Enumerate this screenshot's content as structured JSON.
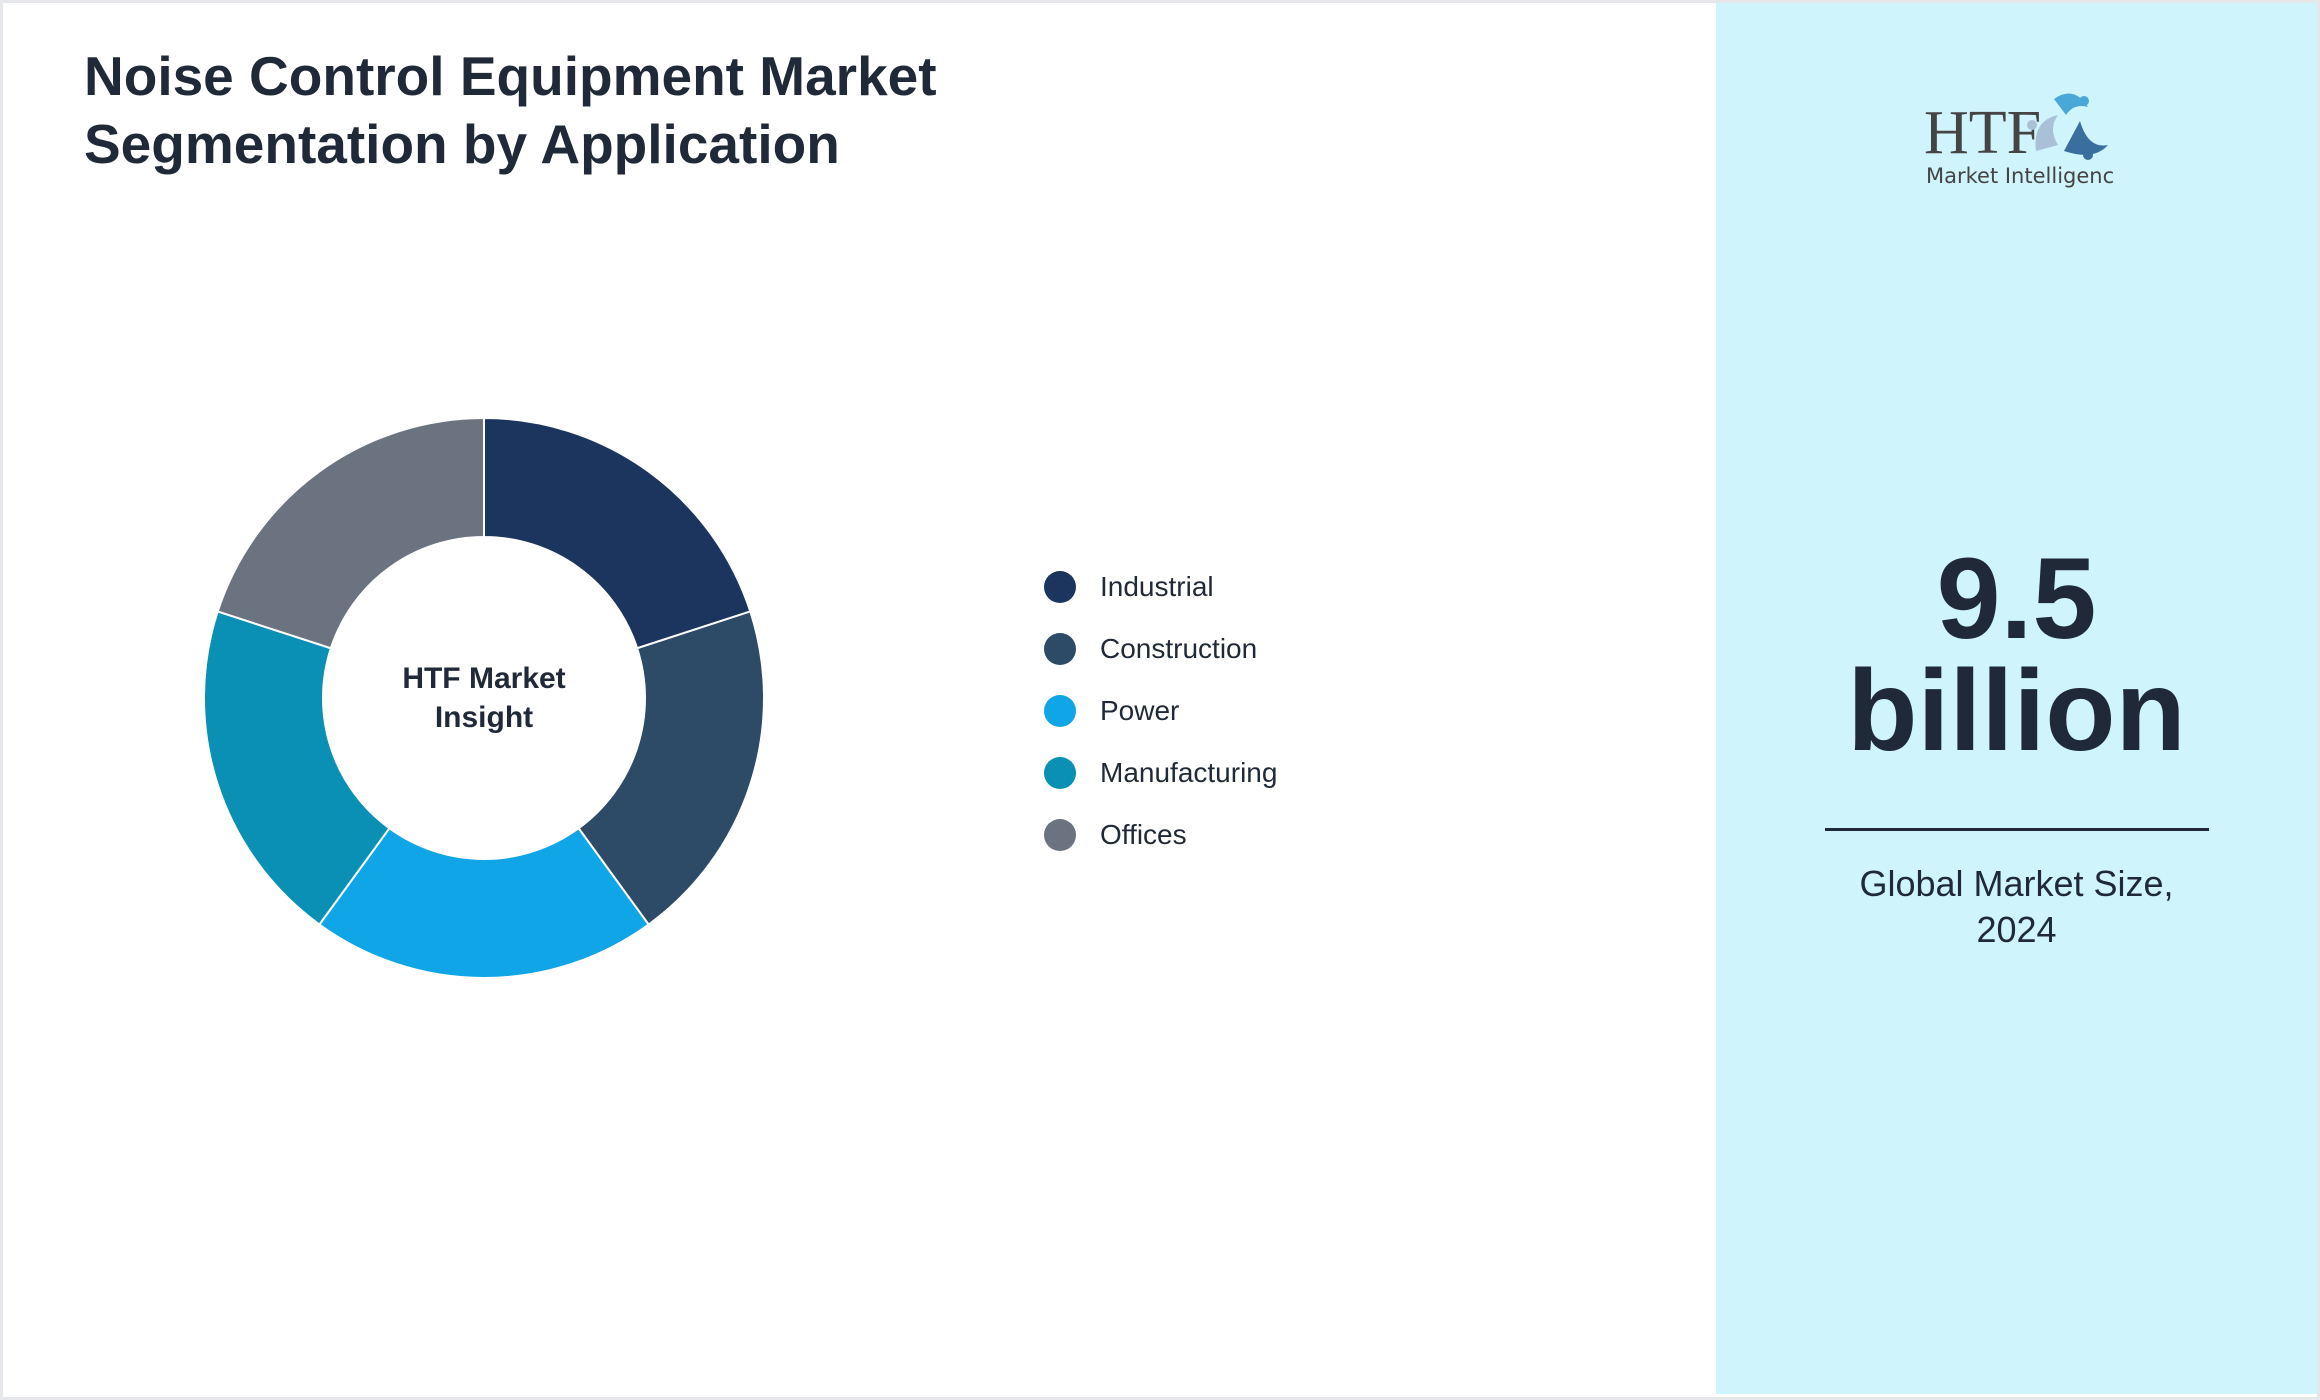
{
  "title_line1": "Noise Control Equipment Market",
  "title_line2": "Segmentation by Application",
  "chart_data": {
    "type": "pie",
    "donut": true,
    "center_label_line1": "HTF Market",
    "center_label_line2": "Insight",
    "categories": [
      "Industrial",
      "Construction",
      "Power",
      "Manufacturing",
      "Offices"
    ],
    "values": [
      20,
      20,
      20,
      20,
      20
    ],
    "colors": [
      "#1c355e",
      "#2d4a66",
      "#10a5e6",
      "#0a8fb5",
      "#6b7280"
    ],
    "legend_position": "right"
  },
  "side": {
    "logo_text": "HTF",
    "logo_subtext": "Market Intelligence",
    "value": "9.5",
    "unit": "billion",
    "caption_line1": "Global Market Size,",
    "caption_line2": "2024",
    "background": "#cff4fc"
  }
}
